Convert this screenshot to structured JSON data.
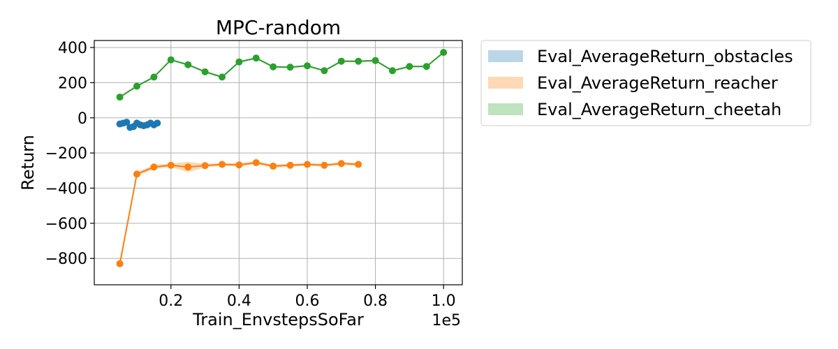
{
  "chart_data": {
    "type": "line",
    "title": "MPC-random",
    "xlabel": "Train_EnvstepsSoFar",
    "ylabel": "Return",
    "x_offset_label": "1e5",
    "xlim": [
      -0.025,
      1.055
    ],
    "ylim": [
      -950,
      440
    ],
    "xticks": [
      0.2,
      0.4,
      0.6,
      0.8,
      1.0
    ],
    "xtick_labels": [
      "0.2",
      "0.4",
      "0.6",
      "0.8",
      "1.0"
    ],
    "yticks": [
      -800,
      -600,
      -400,
      -200,
      0,
      200,
      400
    ],
    "ytick_labels": [
      "−800",
      "−600",
      "−400",
      "−200",
      "0",
      "200",
      "400"
    ],
    "grid": true,
    "legend_placement": "outside-top-right",
    "series": [
      {
        "name": "Eval_AverageReturn_obstacles",
        "color": "#1f77b4",
        "fill_color": "#1f77b4",
        "x": [
          0.05,
          0.06,
          0.07,
          0.08,
          0.09,
          0.1,
          0.11,
          0.12,
          0.13,
          0.14,
          0.15,
          0.16
        ],
        "y": [
          -35,
          -30,
          -25,
          -55,
          -50,
          -30,
          -40,
          -45,
          -40,
          -30,
          -40,
          -30
        ],
        "band": [
          12,
          10,
          12,
          18,
          15,
          12,
          14,
          15,
          14,
          12,
          14,
          10
        ]
      },
      {
        "name": "Eval_AverageReturn_reacher",
        "color": "#ff7f0e",
        "fill_color": "#ff7f0e",
        "x": [
          0.05,
          0.1,
          0.15,
          0.2,
          0.25,
          0.3,
          0.35,
          0.4,
          0.45,
          0.5,
          0.55,
          0.6,
          0.65,
          0.7,
          0.75
        ],
        "y": [
          -830,
          -320,
          -280,
          -270,
          -280,
          -272,
          -265,
          -268,
          -255,
          -275,
          -270,
          -265,
          -270,
          -260,
          -265
        ],
        "band": [
          25,
          10,
          12,
          10,
          30,
          10,
          8,
          10,
          8,
          10,
          8,
          8,
          8,
          8,
          8
        ]
      },
      {
        "name": "Eval_AverageReturn_cheetah",
        "color": "#2ca02c",
        "fill_color": "#2ca02c",
        "x": [
          0.05,
          0.1,
          0.15,
          0.2,
          0.25,
          0.3,
          0.35,
          0.4,
          0.45,
          0.5,
          0.55,
          0.6,
          0.65,
          0.7,
          0.75,
          0.8,
          0.85,
          0.9,
          0.95,
          1.0
        ],
        "y": [
          118,
          180,
          232,
          330,
          302,
          262,
          232,
          318,
          340,
          290,
          288,
          296,
          268,
          322,
          322,
          326,
          268,
          292,
          292,
          372
        ],
        "band": [
          5,
          5,
          5,
          5,
          5,
          5,
          5,
          5,
          5,
          5,
          5,
          5,
          5,
          5,
          5,
          5,
          5,
          5,
          5,
          5
        ]
      }
    ]
  }
}
